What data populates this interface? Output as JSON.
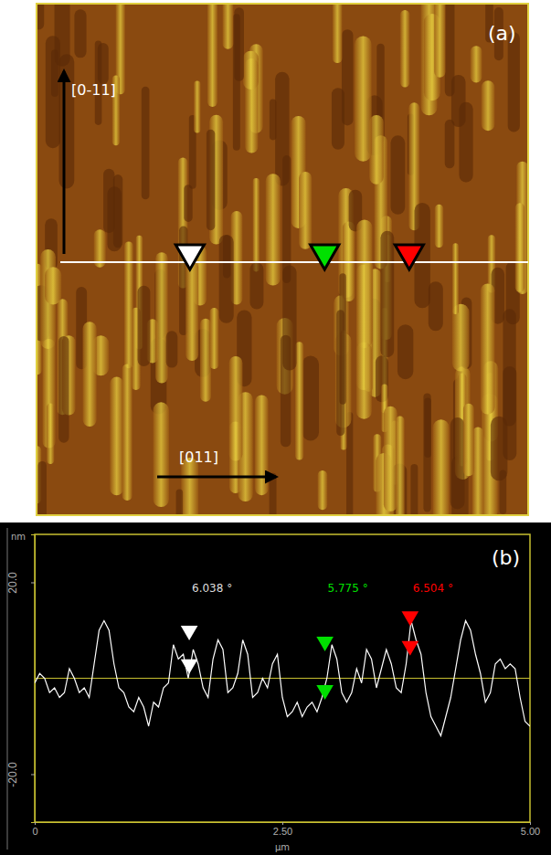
{
  "panel_a": {
    "label": "(a)",
    "axis_vertical": "[0-11]",
    "axis_horizontal": "[011]"
  },
  "chart_data": {
    "type": "line",
    "panel_label": "(b)",
    "ylabel": "nm",
    "xlabel": "µm",
    "xlim": [
      0,
      5
    ],
    "ylim": [
      -30,
      30
    ],
    "xticks": [
      0,
      {
        "value": 2.5,
        "label": "2.50"
      },
      {
        "value": 5,
        "label": "5.00"
      }
    ],
    "yticks": [
      {
        "value": 20,
        "label": "20.0"
      },
      {
        "value": -20,
        "label": "-20.0"
      }
    ],
    "reference_line": 0,
    "grid": false,
    "x": [
      0,
      0.05,
      0.1,
      0.15,
      0.2,
      0.25,
      0.3,
      0.35,
      0.4,
      0.45,
      0.5,
      0.55,
      0.6,
      0.65,
      0.7,
      0.75,
      0.8,
      0.85,
      0.9,
      0.95,
      1.0,
      1.05,
      1.1,
      1.15,
      1.2,
      1.25,
      1.3,
      1.35,
      1.4,
      1.45,
      1.5,
      1.55,
      1.6,
      1.65,
      1.7,
      1.75,
      1.8,
      1.85,
      1.9,
      1.95,
      2.0,
      2.05,
      2.1,
      2.15,
      2.2,
      2.25,
      2.3,
      2.35,
      2.4,
      2.45,
      2.5,
      2.55,
      2.6,
      2.65,
      2.7,
      2.75,
      2.8,
      2.85,
      2.9,
      2.95,
      3.0,
      3.05,
      3.1,
      3.15,
      3.2,
      3.25,
      3.3,
      3.35,
      3.4,
      3.45,
      3.5,
      3.55,
      3.6,
      3.65,
      3.7,
      3.75,
      3.8,
      3.85,
      3.9,
      3.95,
      4.0,
      4.05,
      4.1,
      4.15,
      4.2,
      4.25,
      4.3,
      4.35,
      4.4,
      4.45,
      4.5,
      4.55,
      4.6,
      4.65,
      4.7,
      4.75,
      4.8,
      4.85,
      4.9,
      4.95,
      5.0
    ],
    "series": [
      {
        "color": "#ffffff",
        "values": [
          -1,
          1,
          0,
          -3,
          -2,
          -4,
          -3,
          2,
          0,
          -3,
          -2,
          -4,
          3,
          10,
          12,
          10,
          3,
          -2,
          -3,
          -6,
          -7,
          -4,
          -6,
          -10,
          -5,
          -6,
          -2,
          -1,
          7,
          4,
          5,
          0,
          6,
          3,
          -2,
          -4,
          4,
          8,
          6,
          -3,
          -2,
          1,
          8,
          5,
          -4,
          -3,
          0,
          -2,
          3,
          5,
          -4,
          -8,
          -7,
          -5,
          -8,
          -6,
          -5,
          -7,
          -4,
          0,
          7,
          4,
          -3,
          -5,
          -3,
          2,
          -1,
          6,
          4,
          -2,
          2,
          6,
          3,
          -2,
          -3,
          3,
          12,
          8,
          5,
          -3,
          -8,
          -10,
          -12,
          -8,
          -4,
          2,
          8,
          12,
          10,
          5,
          1,
          -5,
          -3,
          3,
          4,
          2,
          3,
          2,
          -4,
          -9,
          -10
        ]
      }
    ],
    "cursors": [
      {
        "label": "6.038 °",
        "color": "#ffffff",
        "x": [
          1.56,
          1.56
        ],
        "y": [
          9,
          2
        ]
      },
      {
        "label": "5.775 °",
        "color": "#00e000",
        "x": [
          2.93,
          2.93
        ],
        "y": [
          6.7,
          -3.4
        ]
      },
      {
        "label": "6.504 °",
        "color": "#ff0000",
        "x": [
          3.79,
          3.79
        ],
        "y": [
          12,
          5.8
        ]
      }
    ]
  }
}
